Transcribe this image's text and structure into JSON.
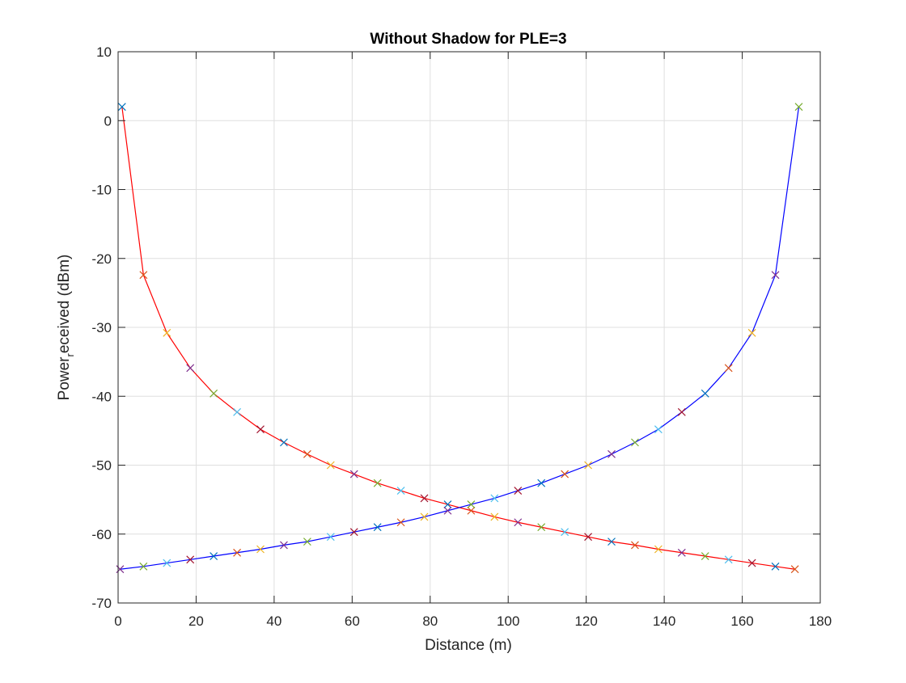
{
  "chart_data": {
    "type": "line",
    "title": "Without Shadow for PLE=3",
    "xlabel": "Distance (m)",
    "ylabel": "Power received (dBm)",
    "ylabel_parts": {
      "pre": "Power",
      "sub": "r",
      "post": "eceived (dBm)"
    },
    "xlim": [
      0,
      180
    ],
    "ylim": [
      -70,
      10
    ],
    "x_ticks": [
      "0",
      "20",
      "40",
      "60",
      "80",
      "100",
      "120",
      "140",
      "160",
      "180"
    ],
    "y_ticks": [
      "-70",
      "-60",
      "-50",
      "-40",
      "-30",
      "-20",
      "-10",
      "0",
      "10"
    ],
    "grid": true,
    "legend": "none",
    "marker_colors": [
      "#0072BD",
      "#D95319",
      "#EDB120",
      "#7E2F8E",
      "#77AC30",
      "#4DBEEE",
      "#A2142F"
    ],
    "series": [
      {
        "color": "#FF0000",
        "x": [
          1,
          6.5,
          12.5,
          18.5,
          24.5,
          30.5,
          36.5,
          42.5,
          48.5,
          54.5,
          60.5,
          66.5,
          72.5,
          78.5,
          84.5,
          90.5,
          96.5,
          102.5,
          108.5,
          114.5,
          120.5,
          126.5,
          132.5,
          138.5,
          144.5,
          150.5,
          156.5,
          162.5,
          168.5,
          173.5
        ],
        "y": [
          2,
          -22.4,
          -30.8,
          -35.9,
          -39.6,
          -42.3,
          -44.8,
          -46.7,
          -48.4,
          -50.0,
          -51.3,
          -52.6,
          -53.7,
          -54.8,
          -55.7,
          -56.6,
          -57.5,
          -58.3,
          -59.0,
          -59.7,
          -60.4,
          -61.1,
          -61.6,
          -62.2,
          -62.7,
          -63.2,
          -63.7,
          -64.2,
          -64.7,
          -65.1
        ]
      },
      {
        "color": "#0000FF",
        "x": [
          0.5,
          6.5,
          12.5,
          18.5,
          24.5,
          30.5,
          36.5,
          42.5,
          48.5,
          54.5,
          60.5,
          66.5,
          72.5,
          78.5,
          84.5,
          90.5,
          96.5,
          102.5,
          108.5,
          114.5,
          120.5,
          126.5,
          132.5,
          138.5,
          144.5,
          150.5,
          156.5,
          162.5,
          168.5,
          174.5
        ],
        "y": [
          -65.1,
          -64.7,
          -64.2,
          -63.7,
          -63.2,
          -62.7,
          -62.2,
          -61.6,
          -61.1,
          -60.4,
          -59.7,
          -59.0,
          -58.3,
          -57.5,
          -56.6,
          -55.7,
          -54.8,
          -53.7,
          -52.6,
          -51.3,
          -50.0,
          -48.4,
          -46.7,
          -44.8,
          -42.3,
          -39.6,
          -35.9,
          -30.8,
          -22.4,
          2
        ]
      }
    ]
  }
}
